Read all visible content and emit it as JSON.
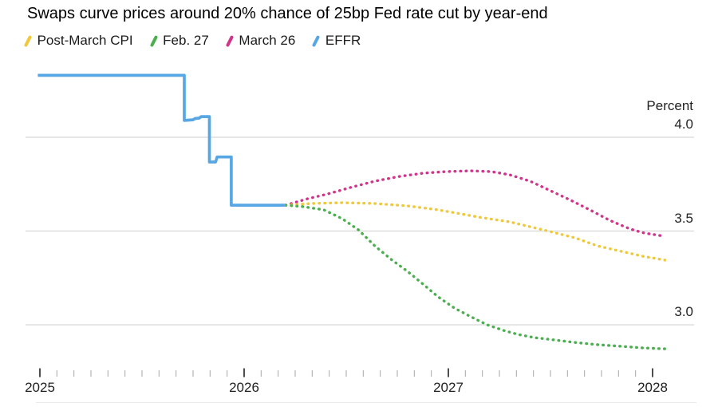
{
  "title": "Swaps curve prices around 20% chance of 25bp Fed rate cut by year-end",
  "legend": {
    "items": [
      {
        "label": "Post-March CPI",
        "color": "#F0C83C"
      },
      {
        "label": "Feb. 27",
        "color": "#4BAE4F"
      },
      {
        "label": "March 26",
        "color": "#D1348B"
      },
      {
        "label": "EFFR",
        "color": "#57A7E4"
      }
    ]
  },
  "colors": {
    "grid": "#d8d8d8",
    "major_tick": "#2e2e2e",
    "minor_tick": "#aeaeae",
    "baseline": "#e9e9e9",
    "text": "#222222"
  },
  "chart_data": {
    "type": "line",
    "title": "Swaps curve prices around 20% chance of 25bp Fed rate cut by year-end",
    "unit_label": "Percent",
    "xlabel": "",
    "ylabel": "Percent",
    "grid": "horizontal gridlines on, vertical off",
    "legend_position": "top",
    "x_axis": {
      "range": [
        2025.0,
        2028.2
      ],
      "major_ticks": [
        2025,
        2026,
        2027,
        2028
      ],
      "tick_labels": [
        "2025",
        "2026",
        "2027",
        "2028"
      ],
      "minor_ticks_per_year": 12
    },
    "y_axis": {
      "ticks": [
        4.0,
        3.5,
        3.0
      ],
      "tick_labels": [
        "4.0",
        "3.5",
        "3.0"
      ],
      "range": [
        2.75,
        4.45
      ]
    },
    "series": [
      {
        "name": "March 26",
        "color": "#D1348B",
        "style": "dotted",
        "points": [
          [
            2026.203,
            3.638
          ],
          [
            2026.31,
            3.672
          ],
          [
            2026.41,
            3.698
          ],
          [
            2026.52,
            3.732
          ],
          [
            2026.64,
            3.766
          ],
          [
            2026.76,
            3.791
          ],
          [
            2026.88,
            3.809
          ],
          [
            2026.99,
            3.817
          ],
          [
            2027.11,
            3.821
          ],
          [
            2027.21,
            3.817
          ],
          [
            2027.3,
            3.8
          ],
          [
            2027.4,
            3.766
          ],
          [
            2027.5,
            3.715
          ],
          [
            2027.6,
            3.664
          ],
          [
            2027.7,
            3.609
          ],
          [
            2027.79,
            3.557
          ],
          [
            2027.89,
            3.511
          ],
          [
            2027.96,
            3.489
          ],
          [
            2028.01,
            3.481
          ],
          [
            2028.06,
            3.472
          ]
        ]
      },
      {
        "name": "Post-March CPI",
        "color": "#F0C83C",
        "style": "dotted",
        "points": [
          [
            2026.203,
            3.638
          ],
          [
            2026.33,
            3.647
          ],
          [
            2026.48,
            3.651
          ],
          [
            2026.64,
            3.647
          ],
          [
            2026.8,
            3.634
          ],
          [
            2026.95,
            3.613
          ],
          [
            2027.15,
            3.574
          ],
          [
            2027.3,
            3.549
          ],
          [
            2027.48,
            3.502
          ],
          [
            2027.62,
            3.464
          ],
          [
            2027.73,
            3.421
          ],
          [
            2027.85,
            3.391
          ],
          [
            2027.95,
            3.366
          ],
          [
            2028.06,
            3.345
          ]
        ]
      },
      {
        "name": "Feb. 27",
        "color": "#4BAE4F",
        "style": "dotted",
        "points": [
          [
            2026.203,
            3.638
          ],
          [
            2026.29,
            3.63
          ],
          [
            2026.39,
            3.613
          ],
          [
            2026.48,
            3.566
          ],
          [
            2026.56,
            3.506
          ],
          [
            2026.64,
            3.421
          ],
          [
            2026.72,
            3.349
          ],
          [
            2026.8,
            3.285
          ],
          [
            2026.88,
            3.213
          ],
          [
            2026.95,
            3.149
          ],
          [
            2027.03,
            3.089
          ],
          [
            2027.11,
            3.043
          ],
          [
            2027.19,
            3.0
          ],
          [
            2027.27,
            2.97
          ],
          [
            2027.34,
            2.949
          ],
          [
            2027.42,
            2.932
          ],
          [
            2027.52,
            2.919
          ],
          [
            2027.62,
            2.906
          ],
          [
            2027.73,
            2.894
          ],
          [
            2027.85,
            2.885
          ],
          [
            2027.95,
            2.877
          ],
          [
            2028.06,
            2.872
          ]
        ]
      },
      {
        "name": "EFFR",
        "color": "#57A7E4",
        "style": "solid",
        "points": [
          [
            2024.99,
            4.33
          ],
          [
            2025.707,
            4.33
          ],
          [
            2025.707,
            4.09
          ],
          [
            2025.75,
            4.093
          ],
          [
            2025.76,
            4.1
          ],
          [
            2025.78,
            4.102
          ],
          [
            2025.79,
            4.11
          ],
          [
            2025.83,
            4.11
          ],
          [
            2025.83,
            3.868
          ],
          [
            2025.86,
            3.868
          ],
          [
            2025.868,
            3.895
          ],
          [
            2025.937,
            3.895
          ],
          [
            2025.937,
            3.638
          ],
          [
            2026.203,
            3.638
          ]
        ]
      }
    ]
  }
}
